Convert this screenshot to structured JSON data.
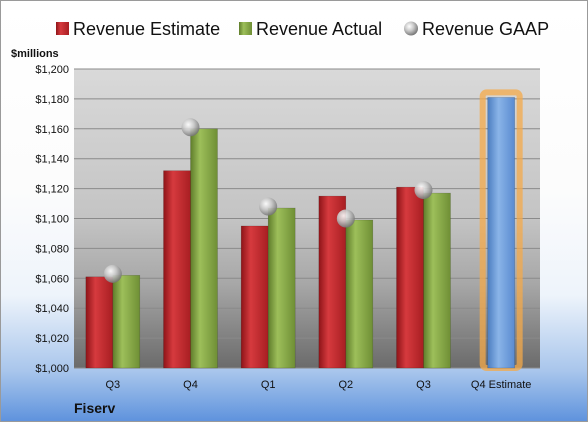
{
  "company": "Fiserv",
  "unit_label": "$millions",
  "legend": [
    {
      "label": "Revenue Estimate",
      "color": "#c0252a",
      "marker": "square"
    },
    {
      "label": "Revenue Actual",
      "color": "#86a944",
      "marker": "square"
    },
    {
      "label": "Revenue GAAP",
      "color": "#b8b8b8",
      "marker": "circle"
    }
  ],
  "chart_data": {
    "type": "bar",
    "title": "",
    "xlabel": "",
    "ylabel": "$millions",
    "ylim": [
      1000,
      1200
    ],
    "y_ticks": [
      "$1,000",
      "$1,020",
      "$1,040",
      "$1,060",
      "$1,080",
      "$1,100",
      "$1,120",
      "$1,140",
      "$1,160",
      "$1,180",
      "$1,200"
    ],
    "categories": [
      "Q3",
      "Q4",
      "Q1",
      "Q2",
      "Q3",
      "Q4 Estimate"
    ],
    "grid": true,
    "legend_position": "top",
    "series": [
      {
        "name": "Revenue Estimate",
        "kind": "bar",
        "color": "#c0252a",
        "values": [
          1061,
          1132,
          1095,
          1115,
          1121,
          null
        ]
      },
      {
        "name": "Revenue Actual",
        "kind": "bar",
        "color": "#86a944",
        "values": [
          1062,
          1160,
          1107,
          1099,
          1117,
          null
        ]
      },
      {
        "name": "Revenue GAAP",
        "kind": "marker",
        "color": "#b8b8b8",
        "values": [
          1063,
          1161,
          1108,
          1100,
          1119,
          null
        ]
      },
      {
        "name": "",
        "kind": "bar",
        "color": "#6f9fd8",
        "values": [
          null,
          null,
          null,
          null,
          null,
          1181
        ]
      }
    ]
  }
}
